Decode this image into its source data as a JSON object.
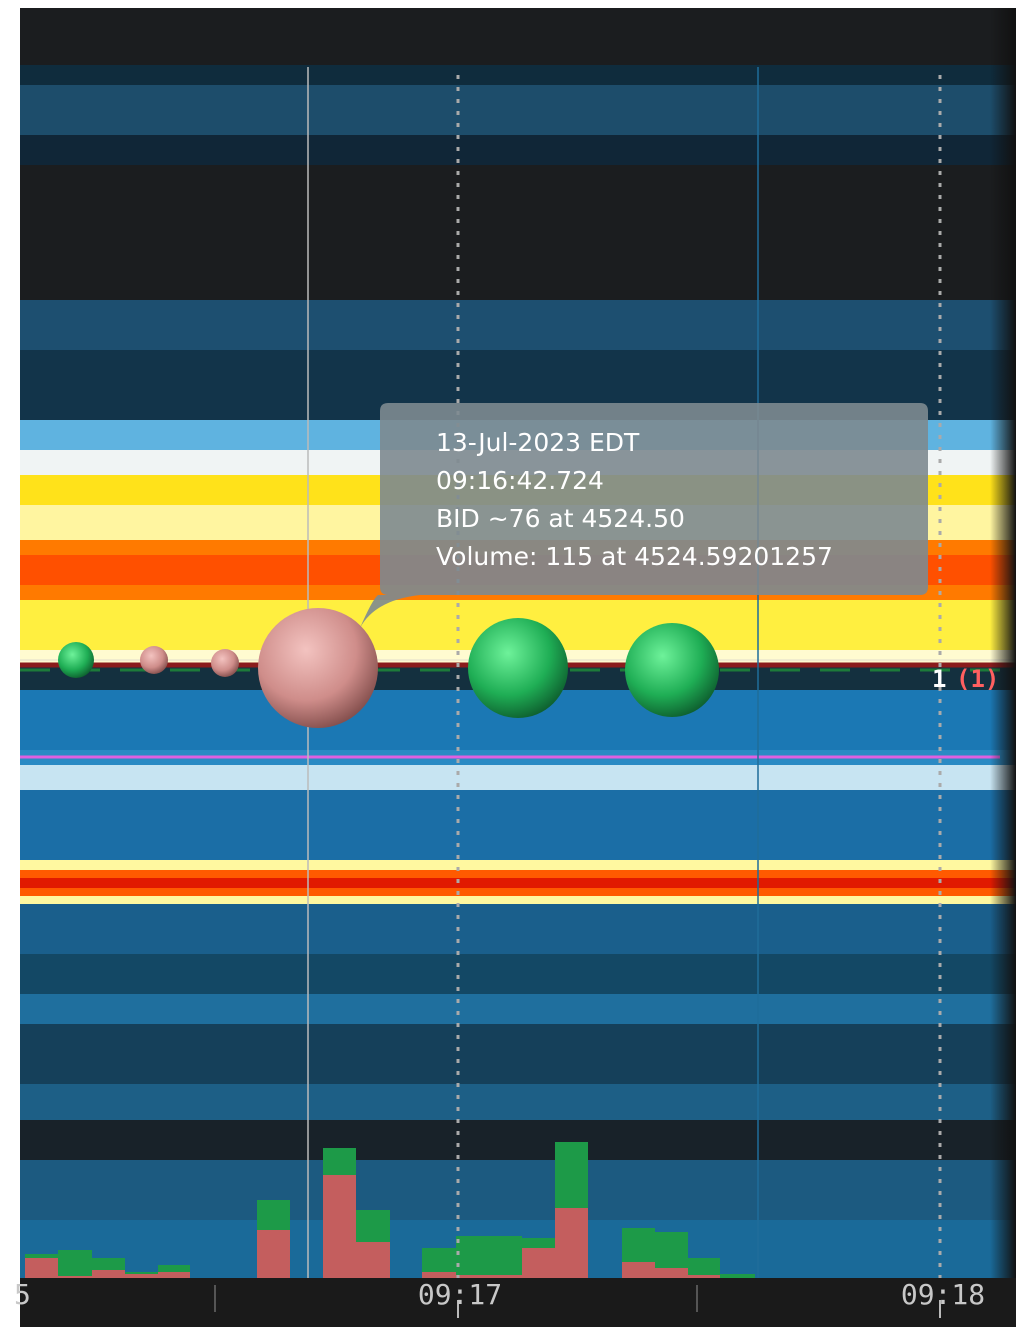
{
  "tooltip": {
    "lines": [
      "13-Jul-2023 EDT",
      "09:16:42.724",
      "BID ~76 at 4524.50",
      "Volume: 115 at 4524.59201257"
    ]
  },
  "price_marker": {
    "count": "1",
    "pending": "(1)"
  },
  "time_axis": {
    "labels": [
      "5",
      "09:17",
      "09:18"
    ]
  }
}
